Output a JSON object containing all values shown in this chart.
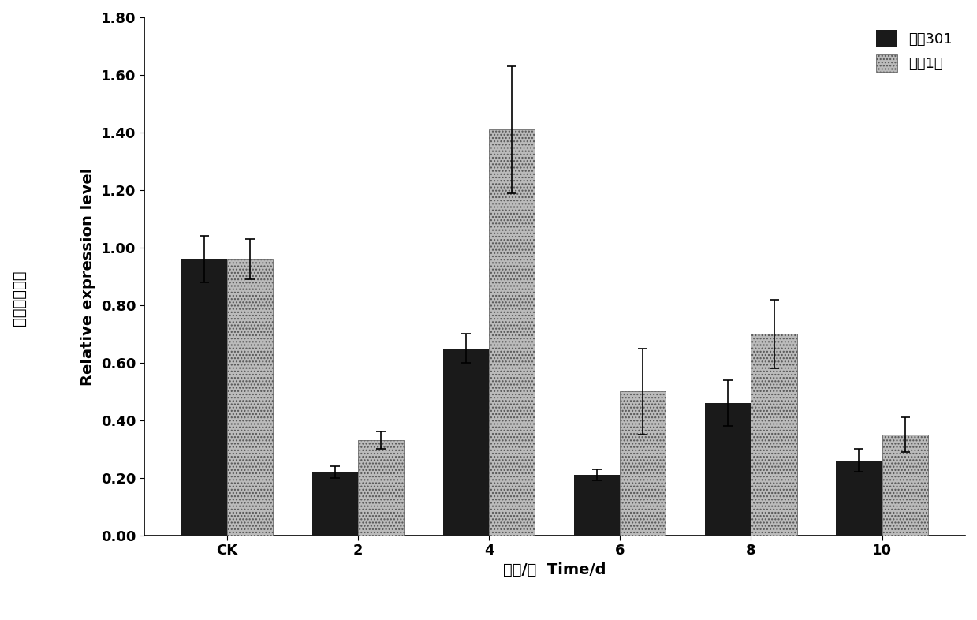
{
  "categories": [
    "CK",
    "2",
    "4",
    "6",
    "8",
    "10"
  ],
  "series1_name": "浙杂301",
  "series2_name": "金棚1号",
  "series1_values": [
    0.96,
    0.22,
    0.65,
    0.21,
    0.46,
    0.26
  ],
  "series2_values": [
    0.96,
    0.33,
    1.41,
    0.5,
    0.7,
    0.35
  ],
  "series1_errors": [
    0.08,
    0.02,
    0.05,
    0.02,
    0.08,
    0.04
  ],
  "series2_errors": [
    0.07,
    0.03,
    0.22,
    0.15,
    0.12,
    0.06
  ],
  "series1_color": "#1a1a1a",
  "series2_color": "#bbbbbb",
  "series2_hatch": "....",
  "ylabel_chinese": "相对表达水平",
  "ylabel_english": "Relative expression level",
  "xlabel": "时间/天  Time/d",
  "ylim": [
    0.0,
    1.8
  ],
  "yticks": [
    0.0,
    0.2,
    0.4,
    0.6,
    0.8,
    1.0,
    1.2,
    1.4,
    1.6,
    1.8
  ],
  "bar_width": 0.35,
  "background_color": "#ffffff",
  "legend_fontsize": 13,
  "tick_fontsize": 13,
  "label_fontsize": 14,
  "axis_fontsize": 14
}
